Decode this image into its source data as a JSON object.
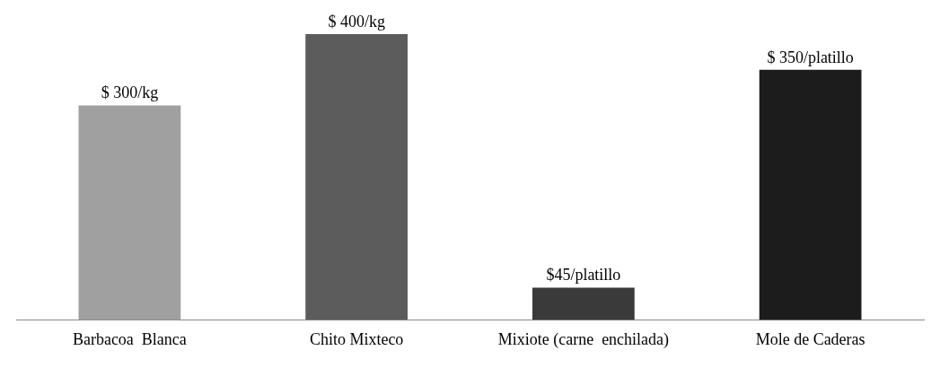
{
  "chart_data": {
    "type": "bar",
    "tick_labels": "x",
    "categories": [
      "Barbacoa  Blanca",
      "Chito Mixteco",
      "Mixiote (carne  enchilada)",
      "Mole de Caderas"
    ],
    "values": [
      300,
      400,
      45,
      350
    ],
    "colors": [
      "#a0a0a0",
      "#5c5c5c",
      "#3a3a3a",
      "#1c1c1c"
    ],
    "value_labels": [
      "$ 300/kg",
      "$ 400/kg",
      "$45/platillo",
      "$ 350/platillo"
    ],
    "grid": false,
    "legend": false
  }
}
